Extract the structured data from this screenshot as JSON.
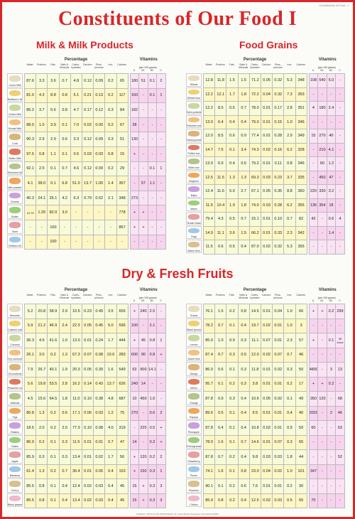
{
  "corner_note": "Constituents of Food - I",
  "title": "Constituents of Our Food I",
  "sections": {
    "milk": "Milk & Milk Products",
    "grains": "Food Grains",
    "fruits": "Dry & Fresh Fruits"
  },
  "headers": {
    "percentage": "Percentage",
    "vitamins": "Vitamins",
    "per100": "(per 100 grams)",
    "pct_cols": [
      "Water",
      "Proteins",
      "Fats",
      "Salts & Minerals",
      "Carbo-hydrates",
      "Calcium",
      "Phos-phorous",
      "Iron",
      "Calories"
    ],
    "vit_cols": [
      "A",
      "B1",
      "B2",
      "C"
    ]
  },
  "milk": {
    "labels": [
      "Cow's Milk",
      "Buffaloe's Milk",
      "Goat's Milk",
      "Breast Milk",
      "Curd",
      "Butter Milk",
      "Skimmed Milk",
      "Milk powder",
      "Cheese",
      "Butter",
      "Ghee",
      "Refined Oil"
    ],
    "rows": [
      [
        "87.6",
        "3.3",
        "3.6",
        "0.7",
        "4.8",
        "0.12",
        "0.09",
        "0.2",
        "65",
        "180",
        "51",
        "0.1",
        "2"
      ],
      [
        "81.0",
        "4.3",
        "8.8",
        "0.8",
        "5.1",
        "0.21",
        "0.13",
        "0.2",
        "117",
        "160",
        "-",
        "0.1",
        "1"
      ],
      [
        "85.2",
        "3.7",
        "5.6",
        "0.8",
        "4.7",
        "0.17",
        "0.12",
        "0.3",
        "84",
        "182",
        "-",
        "-",
        "-"
      ],
      [
        "88.0",
        "1.0",
        "3.9",
        "0.1",
        "7.0",
        "0.02",
        "0.00",
        "0.2",
        "67",
        "28",
        "-",
        "-",
        "-"
      ],
      [
        "90.3",
        "2.9",
        "2.9",
        "0.6",
        "3.3",
        "0.12",
        "0.09",
        "0.3",
        "51",
        "130",
        "-",
        "-",
        "-"
      ],
      [
        "97.5",
        "0.8",
        "1.1",
        "0.1",
        "0.5",
        "0.03",
        "0.03",
        "0.8",
        "15",
        "+",
        "-",
        "-",
        "-"
      ],
      [
        "92.1",
        "2.5",
        "0.1",
        "0.7",
        "4.6",
        "0.12",
        "0.09",
        "0.2",
        "29",
        "-",
        "-",
        "0.1",
        "1"
      ],
      [
        "4.1",
        "38.0",
        "0.1",
        "6.8",
        "51.0",
        "13.7",
        "1.00",
        "1.4",
        "357",
        "-",
        "57",
        "1.1",
        "-"
      ],
      [
        "40.3",
        "24.1",
        "25.1",
        "4.2",
        "6.3",
        "0.79",
        "0.52",
        "2.1",
        "348",
        "273",
        "-",
        "-",
        "-"
      ],
      [
        "13.75",
        "1.25",
        "82.0",
        "3.0",
        "-",
        "-",
        "-",
        "-",
        "778",
        "+",
        "+",
        "-",
        "-"
      ],
      [
        "-",
        "-",
        "100",
        "-",
        "-",
        "-",
        "-",
        "-",
        "867",
        "+",
        "+",
        "-",
        "-"
      ],
      [
        "-",
        "-",
        "100",
        "-",
        "-",
        "-",
        "-",
        "-",
        "-",
        "-",
        "-",
        "-",
        "-"
      ]
    ]
  },
  "grains": {
    "labels": [
      "Wheat",
      "Wheat flour",
      "Semi-polished rice",
      "Polished rice",
      "Hand-pounded boiled rice",
      "Puffed rice",
      "Millet rice",
      "Sorghum",
      "Bajra",
      "Maize",
      "Tender Maize",
      "Ragi",
      "Maize flour"
    ],
    "rows": [
      [
        "12.8",
        "11.8",
        "1.5",
        "1.5",
        "71.2",
        "0.05",
        "0.32",
        "5.3",
        "348",
        "108",
        "540",
        "5.0",
        "-"
      ],
      [
        "12.2",
        "12.1",
        "1.7",
        "1.8",
        "72.2",
        "0.04",
        "0.32",
        "7.3",
        "353",
        "-",
        "-",
        "-",
        "-"
      ],
      [
        "12.2",
        "8.5",
        "0.6",
        "0.7",
        "78.0",
        "0.01",
        "0.17",
        "2.8",
        "351",
        "4",
        "180",
        "2.4",
        "-"
      ],
      [
        "13.0",
        "6.4",
        "0.4",
        "0.4",
        "79.0",
        "0.01",
        "0.15",
        "1.0",
        "346",
        "-",
        "-",
        "-",
        "-"
      ],
      [
        "12.0",
        "8.5",
        "0.6",
        "0.9",
        "77.4",
        "0.01",
        "0.28",
        "2.9",
        "349",
        "15",
        "270",
        "40",
        "-"
      ],
      [
        "14.7",
        "7.5",
        "0.1",
        "3.4",
        "74.3",
        "0.02",
        "0.16",
        "6.2",
        "328",
        "-",
        "210",
        "4.1",
        "-"
      ],
      [
        "13.0",
        "6.9",
        "0.4",
        "0.5",
        "79.2",
        "0.01",
        "0.11",
        "0.8",
        "346",
        "-",
        "60",
        "1.2",
        "-"
      ],
      [
        "12.5",
        "11.5",
        "1.3",
        "1.3",
        "69.3",
        "0.03",
        "0.23",
        "3.7",
        "335",
        "-",
        "450",
        "47",
        "-"
      ],
      [
        "12.4",
        "11.6",
        "5.0",
        "2.7",
        "67.1",
        "0.05",
        "0.35",
        "8.8",
        "360",
        "220",
        "330",
        "3.2",
        "-"
      ],
      [
        "11.9",
        "10.4",
        "1.9",
        "1.8",
        "74.0",
        "0.03",
        "0.28",
        "6.2",
        "355",
        "136",
        "354",
        "18",
        "-"
      ],
      [
        "79.4",
        "4.3",
        "0.5",
        "0.7",
        "15.1",
        "0.01",
        "0.10",
        "0.7",
        "82",
        "42",
        "-",
        "0.6",
        "4"
      ],
      [
        "14.9",
        "11.1",
        "3.6",
        "1.5",
        "66.2",
        "0.01",
        "0.33",
        "2.3",
        "342",
        "-",
        "-",
        "1.4",
        "-"
      ],
      [
        "11.5",
        "0.6",
        "0.5",
        "0.4",
        "87.0",
        "0.02",
        "0.32",
        "5.3",
        "355",
        "-",
        "-",
        "-",
        "-"
      ]
    ]
  },
  "dry_fruits": {
    "labels": [
      "Almonds",
      "Cashew nuts",
      "Coconut",
      "Dry coconut",
      "Groundnuts",
      "Pistachio nuts",
      "Walnuts",
      "Figs",
      "Raisins",
      "Dates",
      "Apple",
      "Bananas",
      "Cherry",
      "Black grapes"
    ],
    "rows": [
      [
        "5.2",
        "20.8",
        "58.9",
        "2.9",
        "10.5",
        "0.23",
        "0.49",
        "3.5",
        "655",
        "+",
        "240",
        "2.5",
        "-"
      ],
      [
        "5.9",
        "21.2",
        "46.9",
        "2.4",
        "22.3",
        "0.05",
        "0.45",
        "5.0",
        "596",
        "100",
        "-",
        "2.1",
        "-"
      ],
      [
        "36.3",
        "4.5",
        "41.6",
        "1.0",
        "13.0",
        "0.01",
        "0.24",
        "1.7",
        "444",
        "+",
        "45",
        "0.8",
        "1"
      ],
      [
        "26.1",
        "3.0",
        "0.2",
        "1.3",
        "67.3",
        "0.07",
        "0.08",
        "10.6",
        "283",
        "600",
        "90",
        "0.8",
        "+"
      ],
      [
        "7.9",
        "26.7",
        "40.1",
        "1.9",
        "20.3",
        "0.05",
        "0.39",
        "1.6",
        "549",
        "63",
        "900",
        "14.1",
        "-"
      ],
      [
        "5.6",
        "19.8",
        "53.5",
        "2.8",
        "16.2",
        "0.14",
        "0.43",
        "13.7",
        "626",
        "240",
        "14",
        "-",
        "-"
      ],
      [
        "4.5",
        "15.6",
        "64.5",
        "1.8",
        "11.0",
        "0.10",
        "0.38",
        "4.8",
        "687",
        "10",
        "450",
        "1.6",
        "-"
      ],
      [
        "80.8",
        "1.3",
        "0.2",
        "0.6",
        "17.1",
        "0.06",
        "0.03",
        "1.2",
        "75",
        "270",
        "-",
        "0.6",
        "2"
      ],
      [
        "18.5",
        "2.0",
        "0.2",
        "2.0",
        "77.3",
        "0.10",
        "0.08",
        "4.0",
        "319",
        "-",
        "225",
        "0.5",
        "+"
      ],
      [
        "86.9",
        "0.2",
        "0.1",
        "0.3",
        "11.5",
        "0.01",
        "0.01",
        "0.7",
        "47",
        "14",
        "-",
        "0.2",
        "+"
      ],
      [
        "85.9",
        "0.3",
        "0.1",
        "0.3",
        "13.4",
        "0.01",
        "0.02",
        "1.7",
        "56",
        "+",
        "120",
        "0.2",
        "2"
      ],
      [
        "61.4",
        "1.3",
        "0.2",
        "0.7",
        "36.4",
        "0.01",
        "0.05",
        "0.4",
        "153",
        "+",
        "150",
        "0.3",
        "1"
      ],
      [
        "85.5",
        "0.8",
        "0.1",
        "0.4",
        "12.4",
        "0.02",
        "0.03",
        "0.4",
        "45",
        "15",
        "+",
        "0.3",
        "3"
      ],
      [
        "85.5",
        "0.8",
        "0.1",
        "0.4",
        "13.4",
        "0.02",
        "0.03",
        "0.4",
        "45",
        "15",
        "+",
        "0.3",
        "3"
      ]
    ]
  },
  "fresh_fruits": {
    "labels": [
      "Guava",
      "Black jamun",
      "Lemon",
      "Sweet lime",
      "Mango",
      "Melon",
      "Orange",
      "Papaya",
      "Pineapple",
      "Pomegranate",
      "Strawberry",
      "Plums",
      "Peaches",
      "Chikoo"
    ],
    "rows": [
      [
        "76.1",
        "1.5",
        "0.2",
        "0.8",
        "14.5",
        "0.01",
        "0.04",
        "1.0",
        "66",
        "+",
        "+",
        "0.2",
        "299"
      ],
      [
        "78.2",
        "0.7",
        "0.1",
        "0.4",
        "19.7",
        "0.02",
        "0.01",
        "1.0",
        "3",
        "-",
        "-",
        "-",
        "-"
      ],
      [
        "85.0",
        "1.0",
        "0.9",
        "0.3",
        "11.1",
        "0.07",
        "0.01",
        "2.3",
        "57",
        "+",
        "-",
        "0.1",
        "39 Juice"
      ],
      [
        "87.4",
        "0.7",
        "0.3",
        "0.5",
        "12.0",
        "0.02",
        "0.07",
        "0.7",
        "46",
        "-",
        "-",
        "-",
        "-"
      ],
      [
        "86.0",
        "0.6",
        "0.1",
        "0.3",
        "11.8",
        "0.01",
        "0.02",
        "0.3",
        "50",
        "4800",
        "-",
        "3",
        "13"
      ],
      [
        "95.7",
        "0.1",
        "0.2",
        "0.3",
        "3.8",
        "0.01",
        "0.01",
        "0.2",
        "17",
        "+",
        "+",
        "0.2",
        "-"
      ],
      [
        "87.8",
        "0.9",
        "0.3",
        "0.4",
        "10.6",
        "0.05",
        "0.02",
        "0.1",
        "49",
        "350",
        "120",
        "-",
        "68"
      ],
      [
        "89.6",
        "0.5",
        "0.1",
        "0.4",
        "9.5",
        "0.01",
        "0.01",
        "0.4",
        "40",
        "2020",
        "-",
        "2",
        "46"
      ],
      [
        "87.8",
        "0.4",
        "0.1",
        "0.4",
        "10.8",
        "0.02",
        "0.01",
        "0.9",
        "50",
        "60",
        "-",
        "-",
        "63"
      ],
      [
        "78.0",
        "1.6",
        "0.1",
        "0.7",
        "14.6",
        "0.01",
        "0.07",
        "0.3",
        "65",
        "-",
        "-",
        "-",
        "-"
      ],
      [
        "87.8",
        "0.7",
        "0.2",
        "0.4",
        "9.8",
        "0.03",
        "0.03",
        "1.8",
        "44",
        "-",
        "-",
        "-",
        "52"
      ],
      [
        "74.1",
        "1.6",
        "0.1",
        "0.8",
        "23.0",
        "0.04",
        "0.02",
        "1.0",
        "101",
        "347",
        "-",
        "-",
        "-"
      ],
      [
        "90.1",
        "0.1",
        "0.2",
        "0.6",
        "7.6",
        "0.01",
        "0.01",
        "0.2",
        "30",
        "-",
        "-",
        "-",
        "-"
      ],
      [
        "85.9",
        "0.8",
        "0.2",
        "0.4",
        "12.5",
        "0.02",
        "0.03",
        "0.5",
        "55",
        "70",
        "-",
        "-",
        "-"
      ]
    ]
  },
  "footer": "Publisher: VIDYA GYAN PRAKASHAN, 61, Ansari Road, Daryaganj, New Delhi-110002"
}
